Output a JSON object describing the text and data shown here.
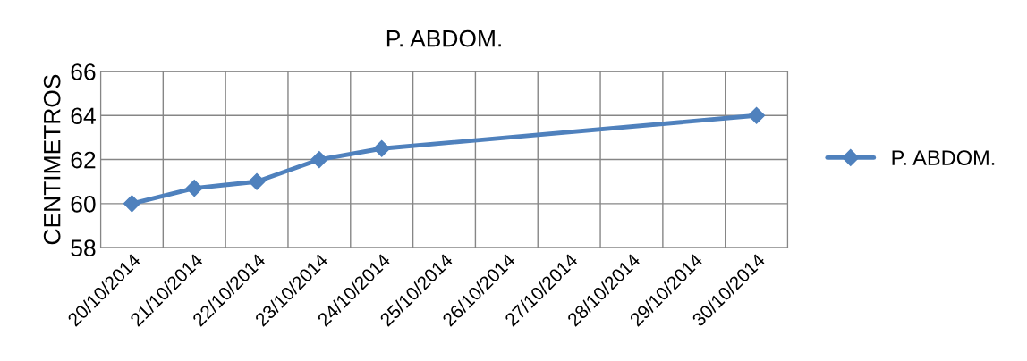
{
  "chart_data": {
    "type": "line",
    "title": "P. ABDOM.",
    "ylabel": "CENTIMETROS",
    "categories": [
      "20/10/2014",
      "21/10/2014",
      "22/10/2014",
      "23/10/2014",
      "24/10/2014",
      "25/10/2014",
      "26/10/2014",
      "27/10/2014",
      "28/10/2014",
      "29/10/2014",
      "30/10/2014"
    ],
    "series": [
      {
        "name": "P. ABDOM.",
        "color": "#4f81bd",
        "values": [
          60,
          60.7,
          61,
          62,
          62.5,
          null,
          null,
          null,
          null,
          null,
          64
        ]
      }
    ],
    "ylim": [
      58,
      66
    ],
    "yticks": [
      58,
      60,
      62,
      64,
      66
    ],
    "grid": true,
    "legend": "right",
    "marker": "diamond",
    "line_style": "solid"
  }
}
